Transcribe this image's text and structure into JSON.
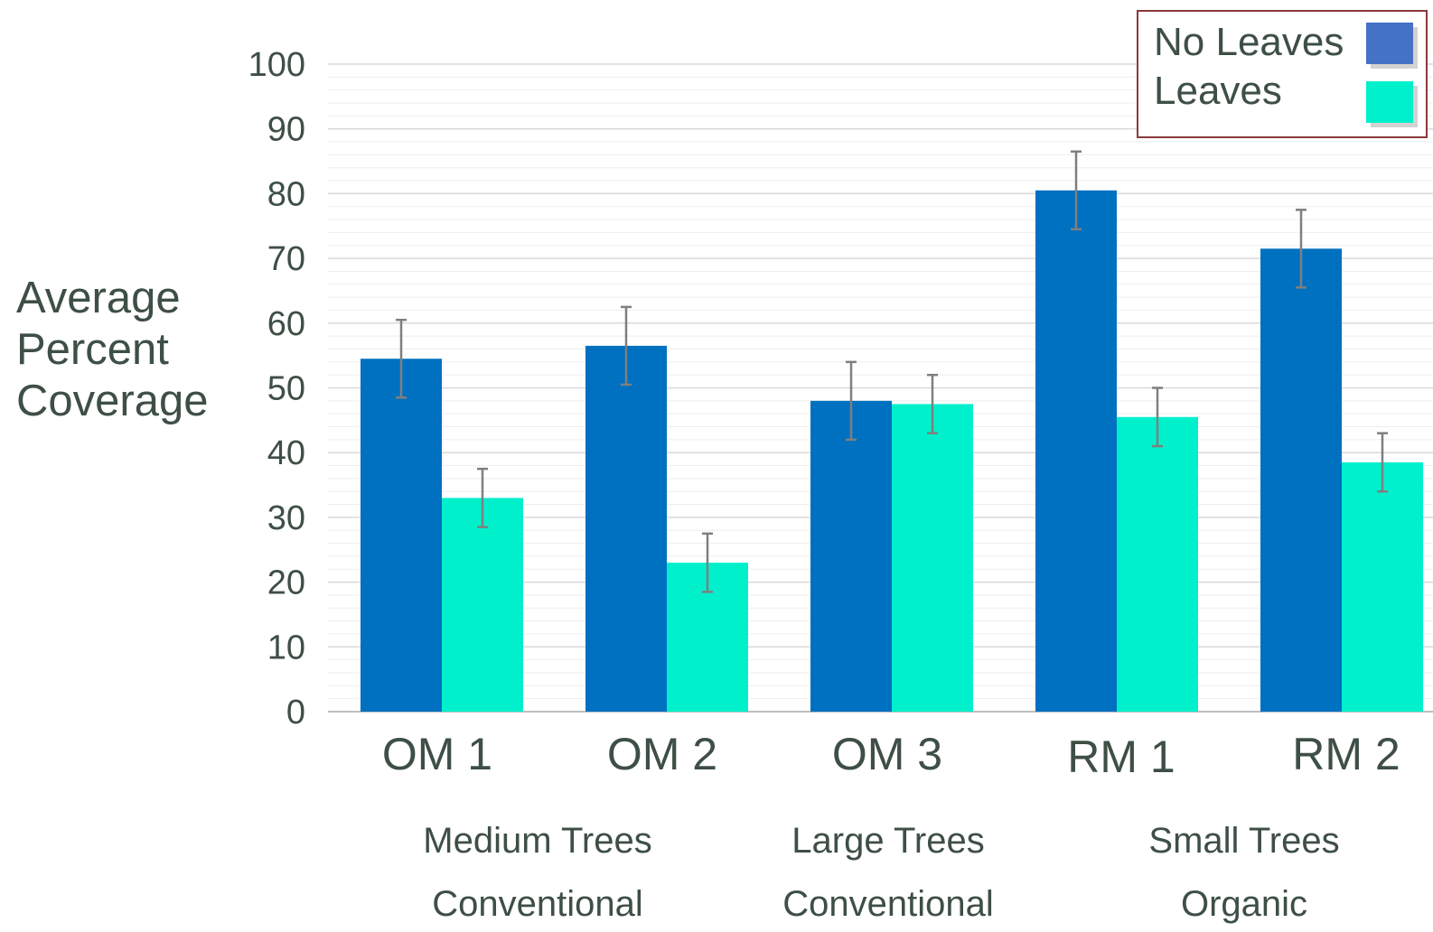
{
  "chart_data": {
    "type": "bar",
    "ylabel_lines": [
      "Average",
      "Percent",
      "Coverage"
    ],
    "ylim": [
      0,
      100
    ],
    "yticks": [
      "0",
      "10",
      "20",
      "30",
      "40",
      "50",
      "60",
      "70",
      "80",
      "90",
      "100"
    ],
    "grid": true,
    "categories": [
      "OM 1",
      "OM 2",
      "OM 3",
      "RM 1",
      "RM 2"
    ],
    "series": [
      {
        "name": "No Leaves",
        "color": "#0070c0",
        "legend_color": "#4472c4",
        "values": [
          54.5,
          56.5,
          48,
          80.5,
          71.5
        ],
        "error": [
          6,
          6,
          6,
          6,
          6
        ]
      },
      {
        "name": "Leaves",
        "color": "#00f0cc",
        "legend_color": "#00f0cc",
        "values": [
          33,
          23,
          47.5,
          45.5,
          38.5
        ],
        "error": [
          4.5,
          4.5,
          4.5,
          4.5,
          4.5
        ]
      }
    ],
    "groups": [
      {
        "line1": "Medium Trees",
        "line2": "Conventional"
      },
      {
        "line1": "Large Trees",
        "line2": "Conventional"
      },
      {
        "line1": "Small Trees",
        "line2": "Organic"
      }
    ],
    "legend_position": "top-right",
    "colors": {
      "text": "#3e4f45",
      "grid": "#d9d9d9",
      "minor_grid": "#eeeeee",
      "error_bar": "#7f7f7f",
      "legend_border": "#8b3a3a"
    }
  }
}
